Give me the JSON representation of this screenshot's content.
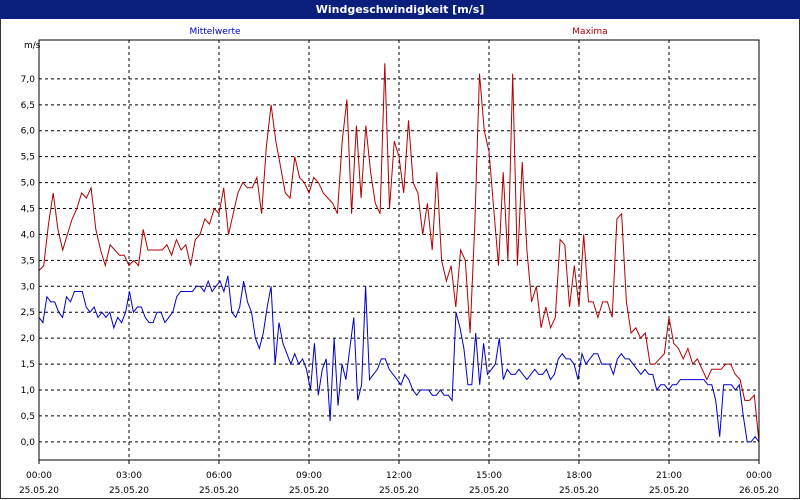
{
  "window": {
    "title": "Windgeschwindigkeit [m/s]"
  },
  "colors": {
    "titlebar": "#0a1e7c",
    "mean": "#0000c8",
    "max": "#b40000",
    "grid": "#000000"
  },
  "chart_data": {
    "type": "line",
    "title": "Windgeschwindigkeit [m/s]",
    "ylabel": "m/s",
    "ylim": [
      -0.35,
      7.75
    ],
    "xlim": [
      0,
      24
    ],
    "grid": true,
    "yticks": [
      "0,0",
      "0,5",
      "1,0",
      "1,5",
      "2,0",
      "2,5",
      "3,0",
      "3,5",
      "4,0",
      "4,5",
      "5,0",
      "5,5",
      "6,0",
      "6,5",
      "7,0"
    ],
    "xticks": [
      {
        "time": "00:00",
        "date": "25.05.20"
      },
      {
        "time": "03:00",
        "date": "25.05.20"
      },
      {
        "time": "06:00",
        "date": "25.05.20"
      },
      {
        "time": "09:00",
        "date": "25.05.20"
      },
      {
        "time": "12:00",
        "date": "25.05.20"
      },
      {
        "time": "15:00",
        "date": "25.05.20"
      },
      {
        "time": "18:00",
        "date": "25.05.20"
      },
      {
        "time": "21:00",
        "date": "25.05.20"
      },
      {
        "time": "00:00",
        "date": "26.05.20"
      }
    ],
    "series": [
      {
        "name": "Mittelwerte",
        "color": "#0000c8",
        "values": [
          2.4,
          2.3,
          2.8,
          2.7,
          2.7,
          2.5,
          2.4,
          2.8,
          2.7,
          2.9,
          2.9,
          2.9,
          2.6,
          2.5,
          2.6,
          2.4,
          2.5,
          2.4,
          2.5,
          2.2,
          2.4,
          2.3,
          2.5,
          2.9,
          2.5,
          2.6,
          2.6,
          2.4,
          2.3,
          2.3,
          2.5,
          2.5,
          2.3,
          2.4,
          2.5,
          2.8,
          2.9,
          2.9,
          2.9,
          2.9,
          3.0,
          3.0,
          2.9,
          3.1,
          2.9,
          3.0,
          3.1,
          2.9,
          3.2,
          2.5,
          2.4,
          2.6,
          3.1,
          2.7,
          2.5,
          2.0,
          1.8,
          2.1,
          2.6,
          3.0,
          1.5,
          2.3,
          1.9,
          1.7,
          1.5,
          1.7,
          1.5,
          1.6,
          1.4,
          1.0,
          1.9,
          0.9,
          1.4,
          1.6,
          0.4,
          2.0,
          0.7,
          1.5,
          1.2,
          1.8,
          2.4,
          0.8,
          1.1,
          3.0,
          1.2,
          1.3,
          1.4,
          1.6,
          1.6,
          1.4,
          1.3,
          1.2,
          1.1,
          1.3,
          1.2,
          1.0,
          0.9,
          1.0,
          1.0,
          1.0,
          0.9,
          0.9,
          1.0,
          0.9,
          0.9,
          0.8,
          2.5,
          2.2,
          1.8,
          1.1,
          1.1,
          2.1,
          1.1,
          1.9,
          1.3,
          1.4,
          1.5,
          2.0,
          1.2,
          1.4,
          1.3,
          1.3,
          1.4,
          1.3,
          1.2,
          1.3,
          1.4,
          1.3,
          1.3,
          1.4,
          1.2,
          1.3,
          1.6,
          1.7,
          1.6,
          1.6,
          1.5,
          1.2,
          1.7,
          1.5,
          1.6,
          1.7,
          1.7,
          1.5,
          1.5,
          1.5,
          1.3,
          1.6,
          1.7,
          1.6,
          1.6,
          1.5,
          1.4,
          1.3,
          1.4,
          1.3,
          1.3,
          1.0,
          1.1,
          1.1,
          1.0,
          1.1,
          1.1,
          1.2,
          1.2,
          1.2,
          1.2,
          1.2,
          1.2,
          1.2,
          1.1,
          1.1,
          0.8,
          0.1,
          1.1,
          1.1,
          1.1,
          1.0,
          1.1,
          0.5,
          0.0,
          0.0,
          0.1,
          0.0
        ],
        "x_start": 0,
        "x_end": 24
      },
      {
        "name": "Maxima",
        "color": "#b40000",
        "values": [
          3.3,
          3.4,
          4.2,
          4.8,
          4.1,
          3.7,
          4.0,
          4.3,
          4.5,
          4.8,
          4.7,
          4.9,
          4.1,
          3.7,
          3.4,
          3.8,
          3.7,
          3.6,
          3.6,
          3.4,
          3.5,
          3.4,
          4.1,
          3.7,
          3.7,
          3.7,
          3.7,
          3.8,
          3.6,
          3.9,
          3.7,
          3.8,
          3.4,
          3.9,
          4.0,
          4.3,
          4.2,
          4.5,
          4.4,
          4.9,
          4.0,
          4.4,
          4.8,
          5.0,
          4.9,
          4.9,
          5.1,
          4.4,
          5.7,
          6.5,
          5.8,
          5.3,
          4.8,
          4.7,
          5.5,
          5.1,
          5.0,
          4.8,
          5.1,
          5.0,
          4.8,
          4.7,
          4.6,
          4.4,
          5.8,
          6.6,
          4.4,
          6.1,
          4.7,
          6.1,
          5.2,
          4.6,
          4.4,
          7.3,
          4.5,
          5.8,
          5.5,
          4.8,
          6.2,
          5.0,
          4.8,
          4.0,
          4.6,
          3.7,
          5.2,
          3.5,
          3.1,
          3.4,
          2.6,
          3.7,
          3.5,
          2.1,
          4.2,
          7.1,
          6.0,
          5.6,
          4.5,
          3.4,
          5.2,
          3.5,
          7.1,
          3.4,
          5.4,
          3.7,
          2.7,
          3.0,
          2.2,
          2.6,
          2.2,
          2.4,
          3.9,
          3.8,
          2.6,
          3.4,
          2.6,
          4.0,
          2.7,
          2.7,
          2.4,
          2.7,
          2.7,
          2.4,
          4.3,
          4.4,
          2.7,
          2.1,
          2.2,
          2.0,
          2.1,
          1.5,
          1.5,
          1.6,
          1.7,
          2.4,
          1.9,
          1.8,
          1.6,
          1.8,
          1.5,
          1.6,
          1.4,
          1.2,
          1.4,
          1.4,
          1.4,
          1.5,
          1.5,
          1.3,
          1.2,
          0.8,
          0.8,
          0.9,
          0.0
        ],
        "x_start": 0,
        "x_end": 24
      }
    ]
  }
}
